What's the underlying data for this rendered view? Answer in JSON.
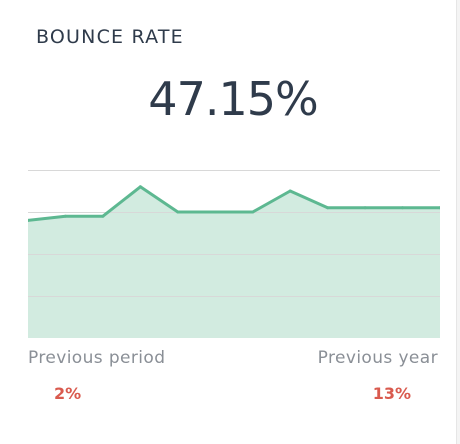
{
  "widget": {
    "title": "BOUNCE RATE",
    "value": "47.15%"
  },
  "comparison": {
    "previous_period_label": "Previous period",
    "previous_period_value": "2%",
    "previous_year_label": "Previous year",
    "previous_year_value": "13%",
    "change_color": "#d95a4e"
  },
  "chart_data": {
    "type": "area",
    "x": [
      0,
      1,
      2,
      3,
      4,
      5,
      6,
      7,
      8,
      9,
      10,
      11
    ],
    "series": [
      {
        "values": [
          0.28,
          0.29,
          0.29,
          0.36,
          0.3,
          0.3,
          0.3,
          0.35,
          0.31,
          0.31,
          0.31,
          0.31
        ]
      }
    ],
    "ylim": [
      0,
      0.4
    ],
    "grid": true,
    "line_color": "#5db891",
    "fill_color": "#d2ebe0"
  }
}
